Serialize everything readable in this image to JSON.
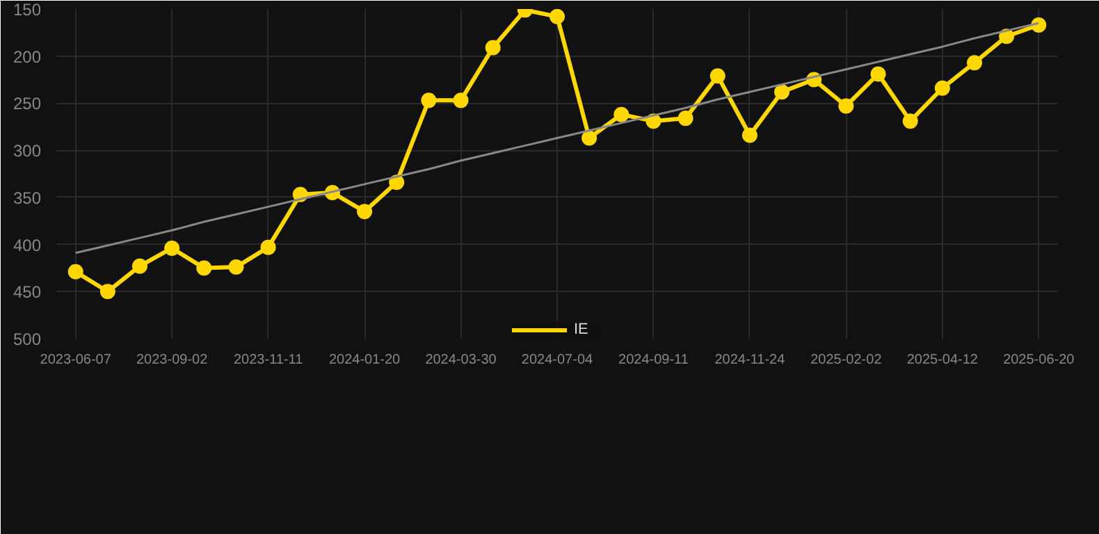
{
  "chart_data": {
    "type": "line",
    "categories": [
      "2023-06-07",
      null,
      null,
      "2023-09-02",
      null,
      null,
      "2023-11-11",
      null,
      null,
      "2024-01-20",
      null,
      null,
      "2024-03-30",
      null,
      null,
      "2024-07-04",
      null,
      null,
      "2024-09-11",
      null,
      null,
      "2024-11-24",
      null,
      null,
      "2025-02-02",
      null,
      null,
      "2025-04-12",
      null,
      null,
      "2025-06-20"
    ],
    "series": [
      {
        "name": "IE",
        "color": "#ffd700",
        "values": [
          429,
          450,
          423,
          404,
          425,
          424,
          403,
          347,
          345,
          365,
          334,
          247,
          247,
          191,
          151,
          158,
          287,
          262,
          269,
          266,
          221,
          284,
          238,
          225,
          253,
          219,
          269,
          234,
          207,
          179,
          167
        ]
      },
      {
        "type": "line",
        "color": "#888888",
        "marker": "none",
        "values": [
          409,
          401,
          393,
          385,
          376,
          368,
          360,
          352,
          344,
          336,
          328,
          320,
          311,
          303,
          295,
          287,
          279,
          271,
          263,
          255,
          246,
          238,
          230,
          222,
          214,
          206,
          198,
          190,
          181,
          173,
          165
        ]
      }
    ],
    "ylim": [
      500,
      150
    ],
    "yticks": [
      150,
      200,
      250,
      300,
      350,
      400,
      450,
      500
    ],
    "grid": true,
    "legend": "bottom",
    "marker": "circle",
    "line_style": "solid"
  }
}
